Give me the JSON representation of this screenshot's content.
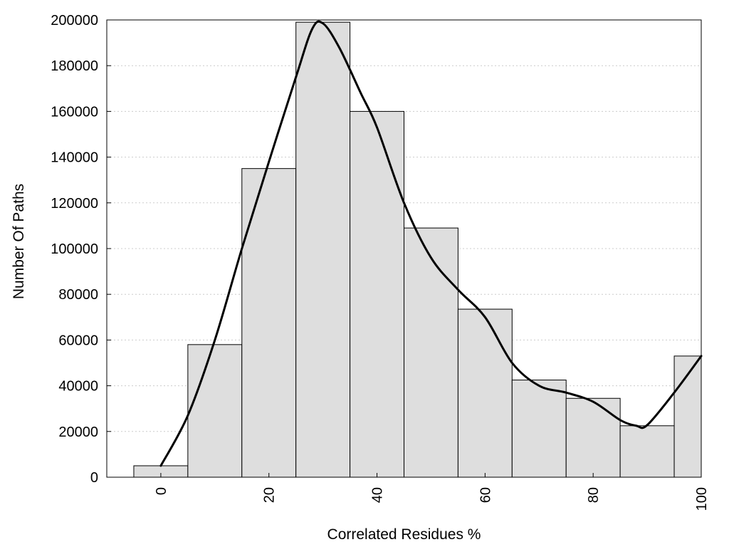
{
  "chart_data": {
    "type": "bar",
    "title": "",
    "xlabel": "Correlated Residues %",
    "ylabel": "Number Of Paths",
    "xlim": [
      -10,
      100
    ],
    "ylim": [
      0,
      200000
    ],
    "xticks": [
      0,
      20,
      40,
      60,
      80,
      100
    ],
    "yticks": [
      0,
      20000,
      40000,
      60000,
      80000,
      100000,
      120000,
      140000,
      160000,
      180000,
      200000
    ],
    "grid": "horizontal dotted",
    "bins": [
      {
        "start": -5,
        "end": 5,
        "value": 5000
      },
      {
        "start": 5,
        "end": 15,
        "value": 58000
      },
      {
        "start": 15,
        "end": 25,
        "value": 135000
      },
      {
        "start": 25,
        "end": 35,
        "value": 199000
      },
      {
        "start": 35,
        "end": 45,
        "value": 160000
      },
      {
        "start": 45,
        "end": 55,
        "value": 109000
      },
      {
        "start": 55,
        "end": 65,
        "value": 73500
      },
      {
        "start": 65,
        "end": 75,
        "value": 42500
      },
      {
        "start": 75,
        "end": 85,
        "value": 34500
      },
      {
        "start": 85,
        "end": 95,
        "value": 22500
      },
      {
        "start": 95,
        "end": 100,
        "value": 53000
      }
    ],
    "curve": {
      "type": "line",
      "points": [
        [
          0,
          5000
        ],
        [
          5,
          27000
        ],
        [
          10,
          60000
        ],
        [
          15,
          100000
        ],
        [
          20,
          138000
        ],
        [
          25,
          175000
        ],
        [
          28,
          196000
        ],
        [
          30,
          198500
        ],
        [
          33,
          188000
        ],
        [
          37,
          168000
        ],
        [
          40,
          153000
        ],
        [
          45,
          120000
        ],
        [
          50,
          96000
        ],
        [
          55,
          82000
        ],
        [
          60,
          70000
        ],
        [
          65,
          50000
        ],
        [
          70,
          40000
        ],
        [
          75,
          37000
        ],
        [
          80,
          33000
        ],
        [
          85,
          25000
        ],
        [
          88,
          22500
        ],
        [
          90,
          22800
        ],
        [
          95,
          37000
        ],
        [
          100,
          53000
        ]
      ]
    },
    "colors": {
      "bar_fill": "#dedede",
      "bar_stroke": "#000000",
      "curve": "#000000",
      "grid": "#cccccc"
    }
  }
}
